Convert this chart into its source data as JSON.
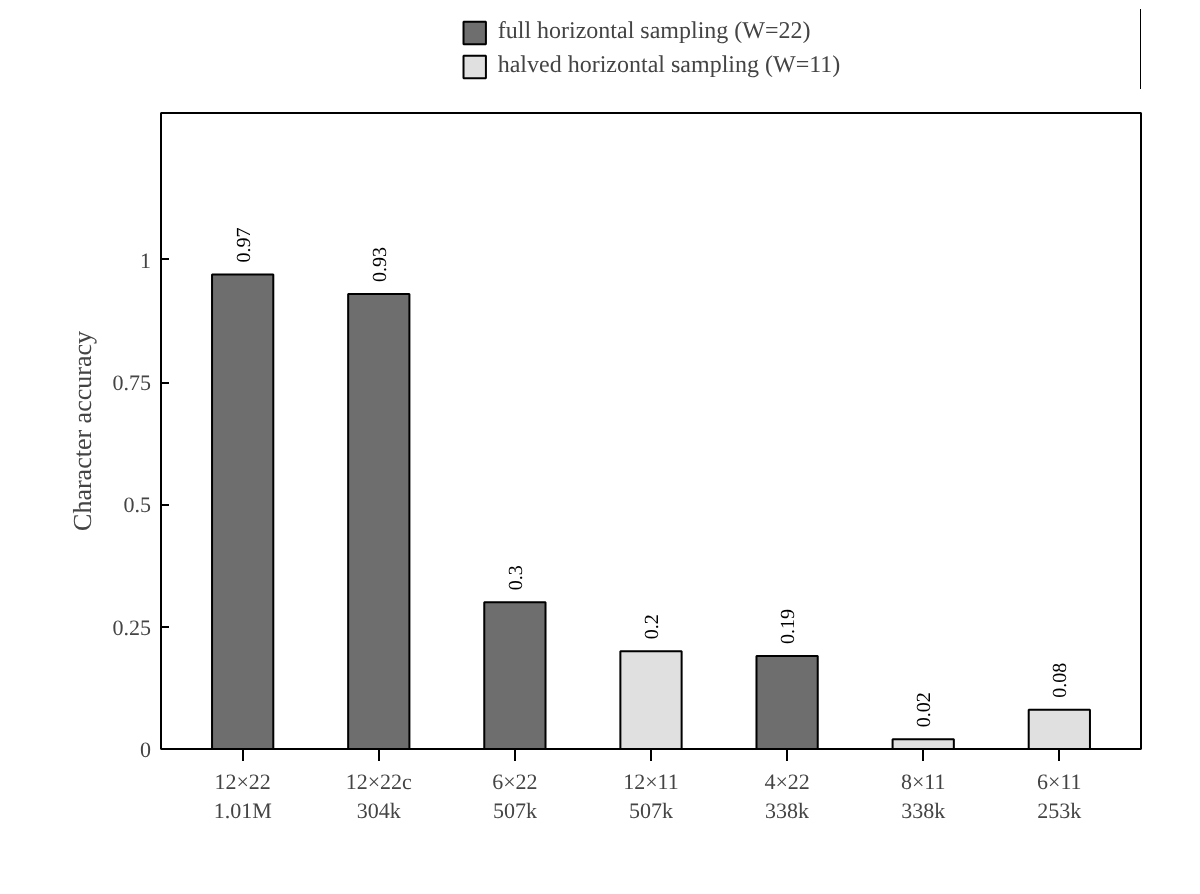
{
  "chart_data": {
    "type": "bar",
    "ylabel": "Character accuracy",
    "categories": [
      "12×22\n1.01M",
      "12×22c\n304k",
      "6×22\n507k",
      "12×11\n507k",
      "4×22\n338k",
      "8×11\n338k",
      "6×11\n253k"
    ],
    "series": [
      {
        "name": "full horizontal sampling (W=22)",
        "color": "#6e6e6e",
        "values": [
          0.97,
          0.93,
          0.3,
          null,
          0.19,
          null,
          null
        ]
      },
      {
        "name": "halved horizontal sampling (W=11)",
        "color": "#e0e0e0",
        "values": [
          null,
          null,
          null,
          0.2,
          null,
          0.02,
          0.08
        ]
      }
    ],
    "ylim": [
      0,
      1.3
    ],
    "yticks": [
      0,
      0.25,
      0.5,
      0.75,
      1
    ],
    "data_labels": true,
    "legend": "top",
    "grid": false
  }
}
